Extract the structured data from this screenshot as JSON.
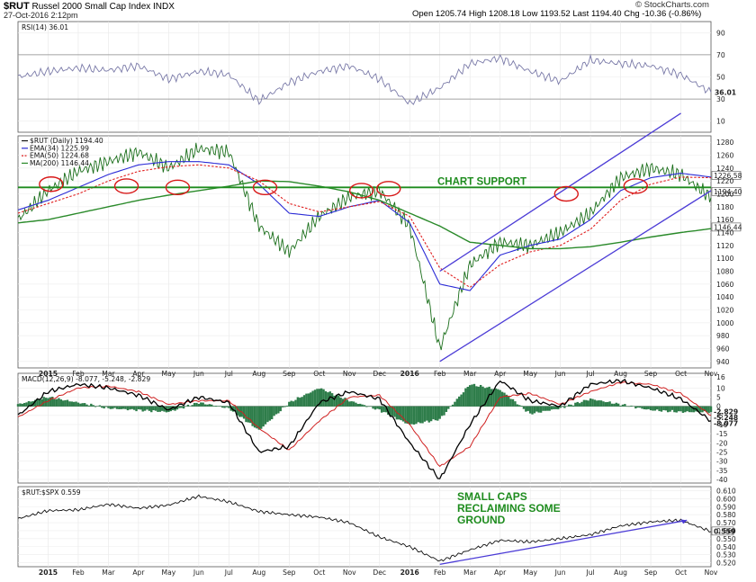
{
  "header": {
    "symbol": "$RUT",
    "name": "Russel 2000 Small Cap Index  INDX",
    "date": "27-Oct-2016 2:12pm",
    "ohlc": "Open 1205.74  High 1208.18  Low 1193.52  Last 1194.40  Chg -10.36 (-0.86%)",
    "brand": "© StockCharts.com"
  },
  "colors": {
    "price": "#1a6e1a",
    "ema34": "#2b2bd6",
    "ema50": "#e02020",
    "ma200": "#2a8a2a",
    "channel": "#4b3bd6",
    "circles": "#d81818",
    "support": "#1e8c1e",
    "rsi": "#7a7aa8",
    "ratio": "#101010",
    "histogram": "#2e7d4a",
    "macd_signal": "#d02020",
    "macd_line": "#000000"
  },
  "chart_data": [
    {
      "panel": "RSI",
      "type": "line",
      "legend": "RSI(14) 36.01",
      "current_value": "36.01",
      "y_ticks": [
        "90",
        "70",
        "50",
        "30",
        "10"
      ],
      "y_range": [
        0,
        100
      ],
      "reference_lines": [
        70,
        30
      ],
      "x_range": [
        "2014-12",
        "2016-11"
      ],
      "series": [
        {
          "x": [
            "2014-12",
            "2015-01",
            "2015-02",
            "2015-03",
            "2015-04",
            "2015-05",
            "2015-06",
            "2015-07",
            "2015-08",
            "2015-09",
            "2015-10",
            "2015-11",
            "2015-12",
            "2016-01",
            "2016-02",
            "2016-03",
            "2016-04",
            "2016-05",
            "2016-06",
            "2016-07",
            "2016-08",
            "2016-09",
            "2016-10",
            "2016-11"
          ],
          "values": [
            50,
            55,
            58,
            56,
            60,
            48,
            55,
            52,
            28,
            45,
            55,
            60,
            48,
            26,
            40,
            62,
            67,
            55,
            46,
            65,
            62,
            60,
            52,
            36
          ]
        }
      ]
    },
    {
      "panel": "Price",
      "type": "line",
      "legends": [
        "$RUT (Daily) 1194.40",
        "EMA(34) 1225.99",
        "EMA(50) 1224.68",
        "MA(200) 1146.44"
      ],
      "y_ticks": [
        "1280",
        "1260",
        "1240",
        "1220",
        "1200",
        "1180",
        "1160",
        "1140",
        "1120",
        "1100",
        "1080",
        "1060",
        "1040",
        "1020",
        "1000",
        "980",
        "960",
        "940"
      ],
      "right_labels": [
        "1226.58",
        "1194.40",
        "1146.44"
      ],
      "y_range": [
        930,
        1290
      ],
      "support_level": 1210,
      "annotation": "CHART SUPPORT",
      "x_labels": [
        "2015",
        "Feb",
        "Mar",
        "Apr",
        "May",
        "Jun",
        "Jul",
        "Aug",
        "Sep",
        "Oct",
        "Nov",
        "Dec",
        "2016",
        "Feb",
        "Mar",
        "Apr",
        "May",
        "Jun",
        "Jul",
        "Aug",
        "Sep",
        "Oct",
        "Nov"
      ],
      "series": [
        {
          "name": "$RUT (Daily)",
          "x": [
            "2014-12",
            "2015-01",
            "2015-02",
            "2015-03",
            "2015-04",
            "2015-05",
            "2015-06",
            "2015-07",
            "2015-08",
            "2015-09",
            "2015-10",
            "2015-11",
            "2015-12",
            "2016-01",
            "2016-02",
            "2016-03",
            "2016-04",
            "2016-05",
            "2016-06",
            "2016-07",
            "2016-08",
            "2016-09",
            "2016-10",
            "2016-11"
          ],
          "values": [
            1160,
            1205,
            1235,
            1250,
            1265,
            1240,
            1270,
            1265,
            1150,
            1110,
            1165,
            1195,
            1205,
            1150,
            960,
            1090,
            1125,
            1120,
            1140,
            1170,
            1225,
            1240,
            1230,
            1194
          ]
        },
        {
          "name": "EMA(34)",
          "x": [
            "2014-12",
            "2015-01",
            "2015-02",
            "2015-03",
            "2015-04",
            "2015-05",
            "2015-06",
            "2015-07",
            "2015-08",
            "2015-09",
            "2015-10",
            "2015-11",
            "2015-12",
            "2016-01",
            "2016-02",
            "2016-03",
            "2016-04",
            "2016-05",
            "2016-06",
            "2016-07",
            "2016-08",
            "2016-09",
            "2016-10",
            "2016-11"
          ],
          "values": [
            1175,
            1190,
            1210,
            1230,
            1245,
            1250,
            1250,
            1245,
            1215,
            1170,
            1165,
            1180,
            1190,
            1155,
            1060,
            1050,
            1105,
            1120,
            1130,
            1160,
            1205,
            1225,
            1232,
            1226
          ]
        },
        {
          "name": "EMA(50)",
          "x": [
            "2014-12",
            "2015-01",
            "2015-02",
            "2015-03",
            "2015-04",
            "2015-05",
            "2015-06",
            "2015-07",
            "2015-08",
            "2015-09",
            "2015-10",
            "2015-11",
            "2015-12",
            "2016-01",
            "2016-02",
            "2016-03",
            "2016-04",
            "2016-05",
            "2016-06",
            "2016-07",
            "2016-08",
            "2016-09",
            "2016-10",
            "2016-11"
          ],
          "values": [
            1170,
            1185,
            1200,
            1220,
            1235,
            1242,
            1245,
            1240,
            1220,
            1185,
            1172,
            1180,
            1188,
            1165,
            1085,
            1055,
            1090,
            1110,
            1120,
            1145,
            1190,
            1215,
            1226,
            1225
          ]
        },
        {
          "name": "MA(200)",
          "x": [
            "2014-12",
            "2015-01",
            "2015-02",
            "2015-03",
            "2015-04",
            "2015-05",
            "2015-06",
            "2015-07",
            "2015-08",
            "2015-09",
            "2015-10",
            "2015-11",
            "2015-12",
            "2016-01",
            "2016-02",
            "2016-03",
            "2016-04",
            "2016-05",
            "2016-06",
            "2016-07",
            "2016-08",
            "2016-09",
            "2016-10",
            "2016-11"
          ],
          "values": [
            1155,
            1160,
            1170,
            1180,
            1190,
            1198,
            1205,
            1212,
            1220,
            1219,
            1212,
            1203,
            1190,
            1170,
            1150,
            1125,
            1120,
            1115,
            1115,
            1118,
            1125,
            1133,
            1140,
            1146
          ]
        }
      ]
    },
    {
      "panel": "MACD",
      "type": "line",
      "legend": "MACD(12,26,9) -8.077, -5.248, -2.829",
      "y_ticks": [
        "16",
        "10",
        "5",
        "0",
        "-5",
        "-10",
        "-15",
        "-20",
        "-25",
        "-30",
        "-35",
        "-40"
      ],
      "right_labels": [
        "-2.829",
        "-5.248",
        "-8.077"
      ],
      "y_range": [
        -42,
        18
      ],
      "series": [
        {
          "name": "MACD",
          "x": [
            "2014-12",
            "2015-01",
            "2015-02",
            "2015-03",
            "2015-04",
            "2015-05",
            "2015-06",
            "2015-07",
            "2015-08",
            "2015-09",
            "2015-10",
            "2015-11",
            "2015-12",
            "2016-01",
            "2016-02",
            "2016-03",
            "2016-04",
            "2016-05",
            "2016-06",
            "2016-07",
            "2016-08",
            "2016-09",
            "2016-10",
            "2016-11"
          ],
          "values": [
            -5,
            8,
            12,
            10,
            6,
            -2,
            5,
            2,
            -25,
            -22,
            2,
            8,
            4,
            -20,
            -40,
            -10,
            14,
            3,
            0,
            12,
            14,
            10,
            4,
            -8
          ]
        },
        {
          "name": "Signal",
          "x": [
            "2014-12",
            "2015-01",
            "2015-02",
            "2015-03",
            "2015-04",
            "2015-05",
            "2015-06",
            "2015-07",
            "2015-08",
            "2015-09",
            "2015-10",
            "2015-11",
            "2015-12",
            "2016-01",
            "2016-02",
            "2016-03",
            "2016-04",
            "2016-05",
            "2016-06",
            "2016-07",
            "2016-08",
            "2016-09",
            "2016-10",
            "2016-11"
          ],
          "values": [
            -6,
            3,
            10,
            11,
            8,
            1,
            3,
            3,
            -12,
            -24,
            -8,
            5,
            6,
            -10,
            -33,
            -22,
            5,
            7,
            1,
            8,
            13,
            12,
            7,
            -5
          ]
        }
      ]
    },
    {
      "panel": "Ratio",
      "type": "line",
      "legend": "$RUT:$SPX 0.559",
      "right_label": "0.559",
      "y_ticks": [
        "0.610",
        "0.600",
        "0.590",
        "0.580",
        "0.570",
        "0.560",
        "0.550",
        "0.540",
        "0.530",
        "0.520"
      ],
      "y_range": [
        0.515,
        0.615
      ],
      "annotation": "SMALL CAPS RECLAIMING SOME GROUND",
      "x_labels": [
        "2015",
        "Feb",
        "Mar",
        "Apr",
        "May",
        "Jun",
        "Jul",
        "Aug",
        "Sep",
        "Oct",
        "Nov",
        "Dec",
        "2016",
        "Feb",
        "Mar",
        "Apr",
        "May",
        "Jun",
        "Jul",
        "Aug",
        "Sep",
        "Oct",
        "Nov"
      ],
      "series": [
        {
          "name": "$RUT:$SPX",
          "x": [
            "2014-12",
            "2015-01",
            "2015-02",
            "2015-03",
            "2015-04",
            "2015-05",
            "2015-06",
            "2015-07",
            "2015-08",
            "2015-09",
            "2015-10",
            "2015-11",
            "2015-12",
            "2016-01",
            "2016-02",
            "2016-03",
            "2016-04",
            "2016-05",
            "2016-06",
            "2016-07",
            "2016-08",
            "2016-09",
            "2016-10",
            "2016-11"
          ],
          "values": [
            0.575,
            0.585,
            0.586,
            0.593,
            0.588,
            0.592,
            0.603,
            0.596,
            0.584,
            0.58,
            0.577,
            0.57,
            0.552,
            0.54,
            0.522,
            0.536,
            0.548,
            0.546,
            0.55,
            0.555,
            0.566,
            0.571,
            0.573,
            0.559
          ]
        }
      ]
    }
  ]
}
